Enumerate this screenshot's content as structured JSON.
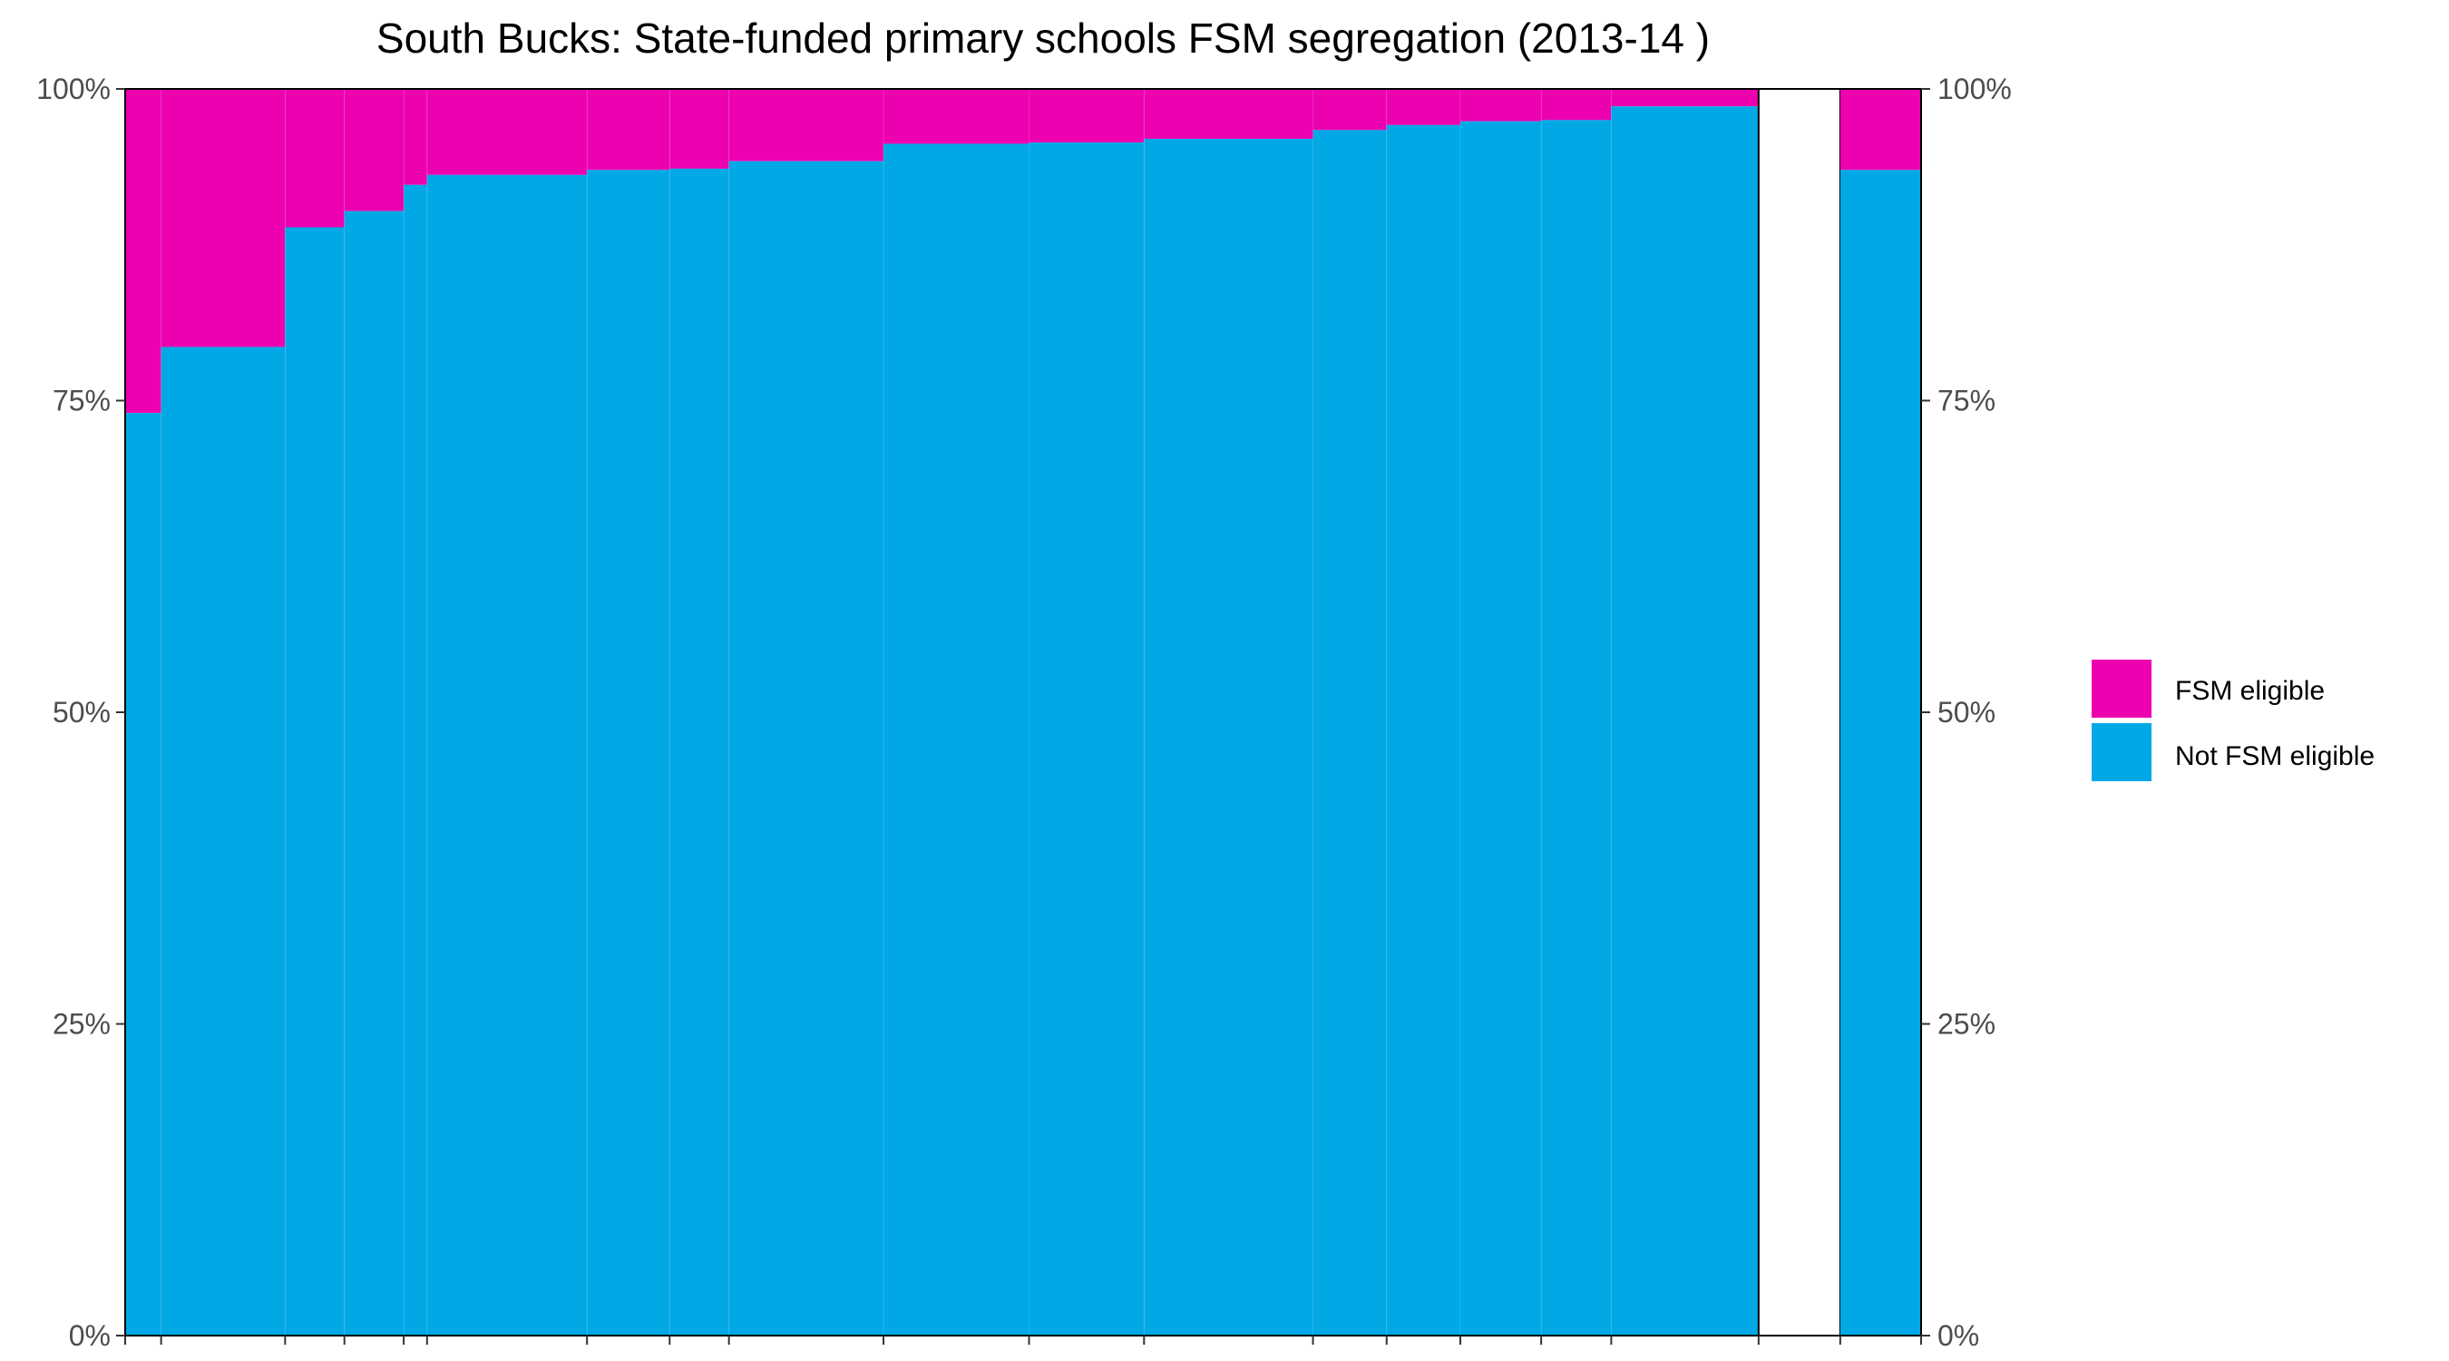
{
  "chart_data": {
    "type": "bar",
    "subtype": "stacked-percent-mosaic",
    "title": "South Bucks: State-funded primary schools FSM segregation (2013-14 )",
    "xlabel": "",
    "ylabel": "",
    "ylim": [
      0,
      100
    ],
    "y_ticks": [
      "0%",
      "25%",
      "50%",
      "75%",
      "100%"
    ],
    "y_tick_values": [
      0,
      25,
      50,
      75,
      100
    ],
    "secondary_y_axis": true,
    "grid": false,
    "legend_position": "right",
    "colors": {
      "fsm": "#EC00B0",
      "not_fsm": "#00A8E6"
    },
    "legend": [
      {
        "key": "fsm",
        "label": "FSM eligible"
      },
      {
        "key": "not_fsm",
        "label": "Not FSM eligible"
      }
    ],
    "schools": {
      "widths": [
        20,
        69,
        33,
        33,
        13,
        89,
        46,
        33,
        86,
        81,
        64,
        94,
        41,
        41,
        45,
        39,
        82
      ],
      "not_fsm_percent": [
        74.0,
        79.3,
        88.9,
        90.2,
        92.3,
        93.1,
        93.5,
        93.6,
        94.2,
        95.6,
        95.7,
        96.0,
        96.7,
        97.1,
        97.4,
        97.5,
        98.6
      ]
    },
    "total": {
      "width": 45,
      "not_fsm_percent": 93.5
    }
  }
}
